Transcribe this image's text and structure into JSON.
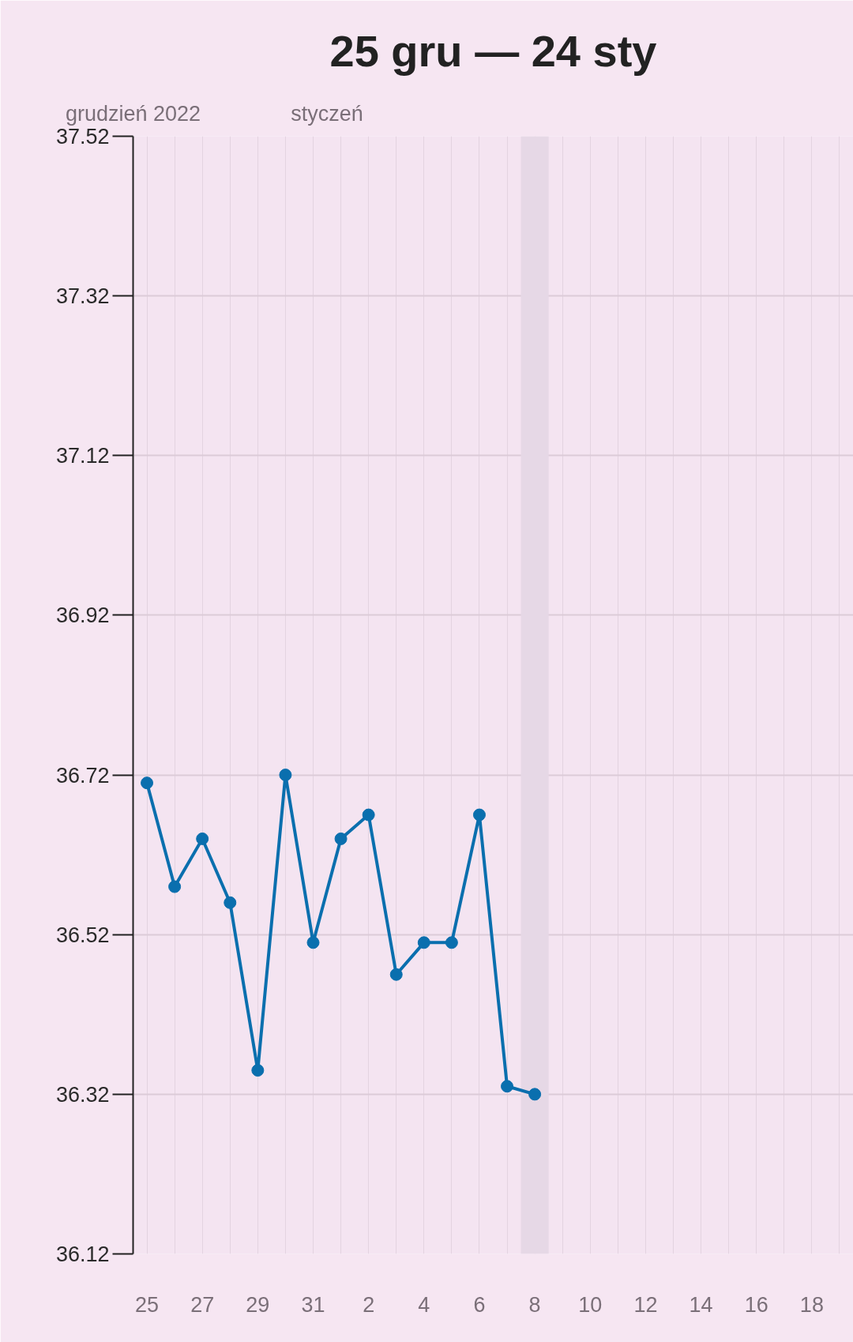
{
  "chart_data": {
    "type": "line",
    "title": "25 gru — 24 sty",
    "annotations": [
      "grudzień 2022",
      "styczeń"
    ],
    "x": [
      "2022-12-25",
      "2022-12-26",
      "2022-12-27",
      "2022-12-28",
      "2022-12-29",
      "2022-12-30",
      "2022-12-31",
      "2023-01-01",
      "2023-01-02",
      "2023-01-03",
      "2023-01-04",
      "2023-01-05",
      "2023-01-06",
      "2023-01-07",
      "2023-01-08"
    ],
    "series": [
      {
        "color": "#0a6fae",
        "values": [
          36.71,
          36.58,
          36.64,
          36.56,
          36.35,
          36.72,
          36.51,
          36.64,
          36.67,
          36.47,
          36.51,
          36.51,
          36.67,
          36.33,
          36.32
        ]
      }
    ],
    "marker": "circle",
    "line_style": "solid",
    "grid": true,
    "xlim": [
      "2022-12-24T12:00",
      "2023-01-19T12:00"
    ],
    "xticks": [
      {
        "value": "2022-12-25",
        "label": "25"
      },
      {
        "value": "2022-12-26",
        "label": null
      },
      {
        "value": "2022-12-27",
        "label": "27"
      },
      {
        "value": "2022-12-28",
        "label": null
      },
      {
        "value": "2022-12-29",
        "label": "29"
      },
      {
        "value": "2022-12-30",
        "label": null
      },
      {
        "value": "2022-12-31",
        "label": "31"
      },
      {
        "value": "2023-01-01",
        "label": null
      },
      {
        "value": "2023-01-02",
        "label": "2"
      },
      {
        "value": "2023-01-03",
        "label": null
      },
      {
        "value": "2023-01-04",
        "label": "4"
      },
      {
        "value": "2023-01-05",
        "label": null
      },
      {
        "value": "2023-01-06",
        "label": "6"
      },
      {
        "value": "2023-01-07",
        "label": null
      },
      {
        "value": "2023-01-08",
        "label": "8"
      },
      {
        "value": "2023-01-09",
        "label": null
      },
      {
        "value": "2023-01-10",
        "label": "10"
      },
      {
        "value": "2023-01-11",
        "label": null
      },
      {
        "value": "2023-01-12",
        "label": "12"
      },
      {
        "value": "2023-01-13",
        "label": null
      },
      {
        "value": "2023-01-14",
        "label": "14"
      },
      {
        "value": "2023-01-15",
        "label": null
      },
      {
        "value": "2023-01-16",
        "label": "16"
      },
      {
        "value": "2023-01-17",
        "label": null
      },
      {
        "value": "2023-01-18",
        "label": "18"
      },
      {
        "value": "2023-01-19",
        "label": null
      }
    ],
    "ylim": [
      36.12,
      37.52
    ],
    "yticks": [
      36.12,
      36.32,
      36.52,
      36.72,
      36.92,
      37.12,
      37.32,
      37.52
    ],
    "bands": [
      {
        "axis": "x",
        "from": "2023-01-07T12:00",
        "to": "2023-01-08T12:00",
        "color": "#e6d8e6"
      }
    ]
  }
}
